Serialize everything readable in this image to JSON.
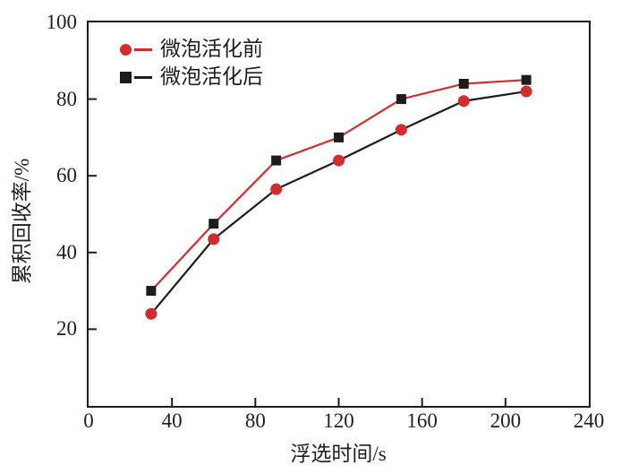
{
  "figure": {
    "background": "#ffffff",
    "axis_color": "#1c1c1c",
    "text_color": "#1f1f1f"
  },
  "chart_data": {
    "type": "line",
    "title": "",
    "xlabel": "浮选时间/s",
    "ylabel": "累积回收率/%",
    "xlim": [
      0,
      240
    ],
    "ylim": [
      0,
      100
    ],
    "x_ticks": [
      0,
      40,
      80,
      120,
      160,
      200,
      240
    ],
    "y_ticks": [
      20,
      40,
      60,
      80,
      100
    ],
    "grid": false,
    "legend_position": "top-left-inside",
    "x": [
      30,
      60,
      90,
      120,
      150,
      180,
      210
    ],
    "series": [
      {
        "name": "微泡活化前",
        "marker": "circle",
        "marker_color": "#d22c2e",
        "line_color": "#1c1c1c",
        "legend_line_color": "#d22c2e",
        "values": [
          24,
          43.5,
          56.5,
          64,
          72,
          79.5,
          82
        ]
      },
      {
        "name": "微泡活化后",
        "marker": "square",
        "marker_color": "#1c1c1c",
        "line_color": "#d22c2e",
        "legend_line_color": "#1c1c1c",
        "values": [
          30,
          47.5,
          64,
          70,
          80,
          84,
          85
        ]
      }
    ]
  }
}
